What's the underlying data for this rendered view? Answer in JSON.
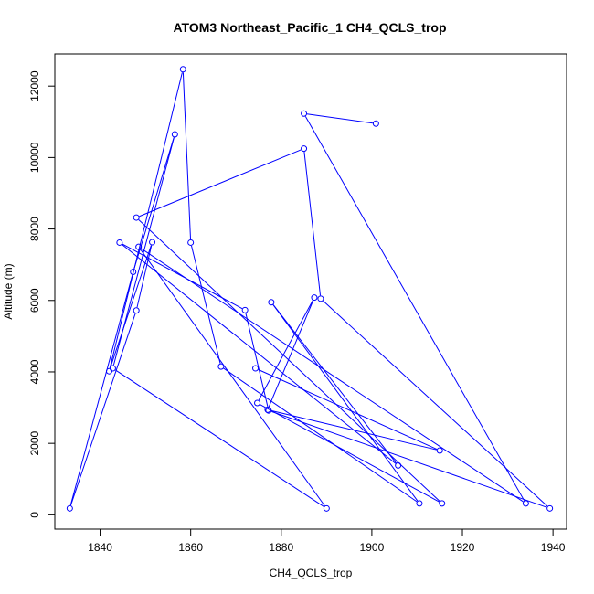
{
  "chart_data": {
    "type": "line",
    "title": "ATOM3 Northeast_Pacific_1 CH4_QCLS_trop",
    "xlabel": "CH4_QCLS_trop",
    "ylabel": "Altitude (m)",
    "xlim": [
      1830,
      1943
    ],
    "ylim": [
      -400,
      12900
    ],
    "x_ticks": [
      1840,
      1860,
      1880,
      1900,
      1920,
      1940
    ],
    "y_ticks": [
      0,
      2000,
      4000,
      6000,
      8000,
      10000,
      12000
    ],
    "x_tick_labels": [
      "1840",
      "1860",
      "1880",
      "1900",
      "1920",
      "1940"
    ],
    "y_tick_labels": [
      "0",
      "2000",
      "4000",
      "6000",
      "8000",
      "10000",
      "12000"
    ],
    "grid": false,
    "legend": "none",
    "line_color": "#0000ff",
    "series": [
      {
        "points": [
          {
            "x": 1900.9,
            "y": 10950
          },
          {
            "x": 1885.0,
            "y": 11230
          },
          {
            "x": 1934.0,
            "y": 320
          },
          {
            "x": 1848.5,
            "y": 7500
          },
          {
            "x": 1890.0,
            "y": 180
          },
          {
            "x": 1842.8,
            "y": 4100
          },
          {
            "x": 1856.5,
            "y": 10650
          },
          {
            "x": 1847.3,
            "y": 6800
          },
          {
            "x": 1833.3,
            "y": 180
          },
          {
            "x": 1848.0,
            "y": 5720
          },
          {
            "x": 1851.5,
            "y": 7630
          },
          {
            "x": 1842.0,
            "y": 4020
          },
          {
            "x": 1858.3,
            "y": 12470
          },
          {
            "x": 1860.0,
            "y": 7620
          },
          {
            "x": 1866.7,
            "y": 4150
          },
          {
            "x": 1910.5,
            "y": 320
          },
          {
            "x": 1877.8,
            "y": 5950
          },
          {
            "x": 1905.8,
            "y": 1380
          },
          {
            "x": 1844.3,
            "y": 7620
          },
          {
            "x": 1872.0,
            "y": 5730
          },
          {
            "x": 1877.2,
            "y": 2920
          },
          {
            "x": 1939.3,
            "y": 180
          },
          {
            "x": 1888.7,
            "y": 6050
          },
          {
            "x": 1885.0,
            "y": 10250
          },
          {
            "x": 1848.0,
            "y": 8320
          },
          {
            "x": 1915.5,
            "y": 320
          },
          {
            "x": 1874.7,
            "y": 3130
          },
          {
            "x": 1887.3,
            "y": 6080
          },
          {
            "x": 1877.0,
            "y": 2940
          },
          {
            "x": 1915.0,
            "y": 1800
          },
          {
            "x": 1874.3,
            "y": 4100
          }
        ]
      }
    ]
  }
}
